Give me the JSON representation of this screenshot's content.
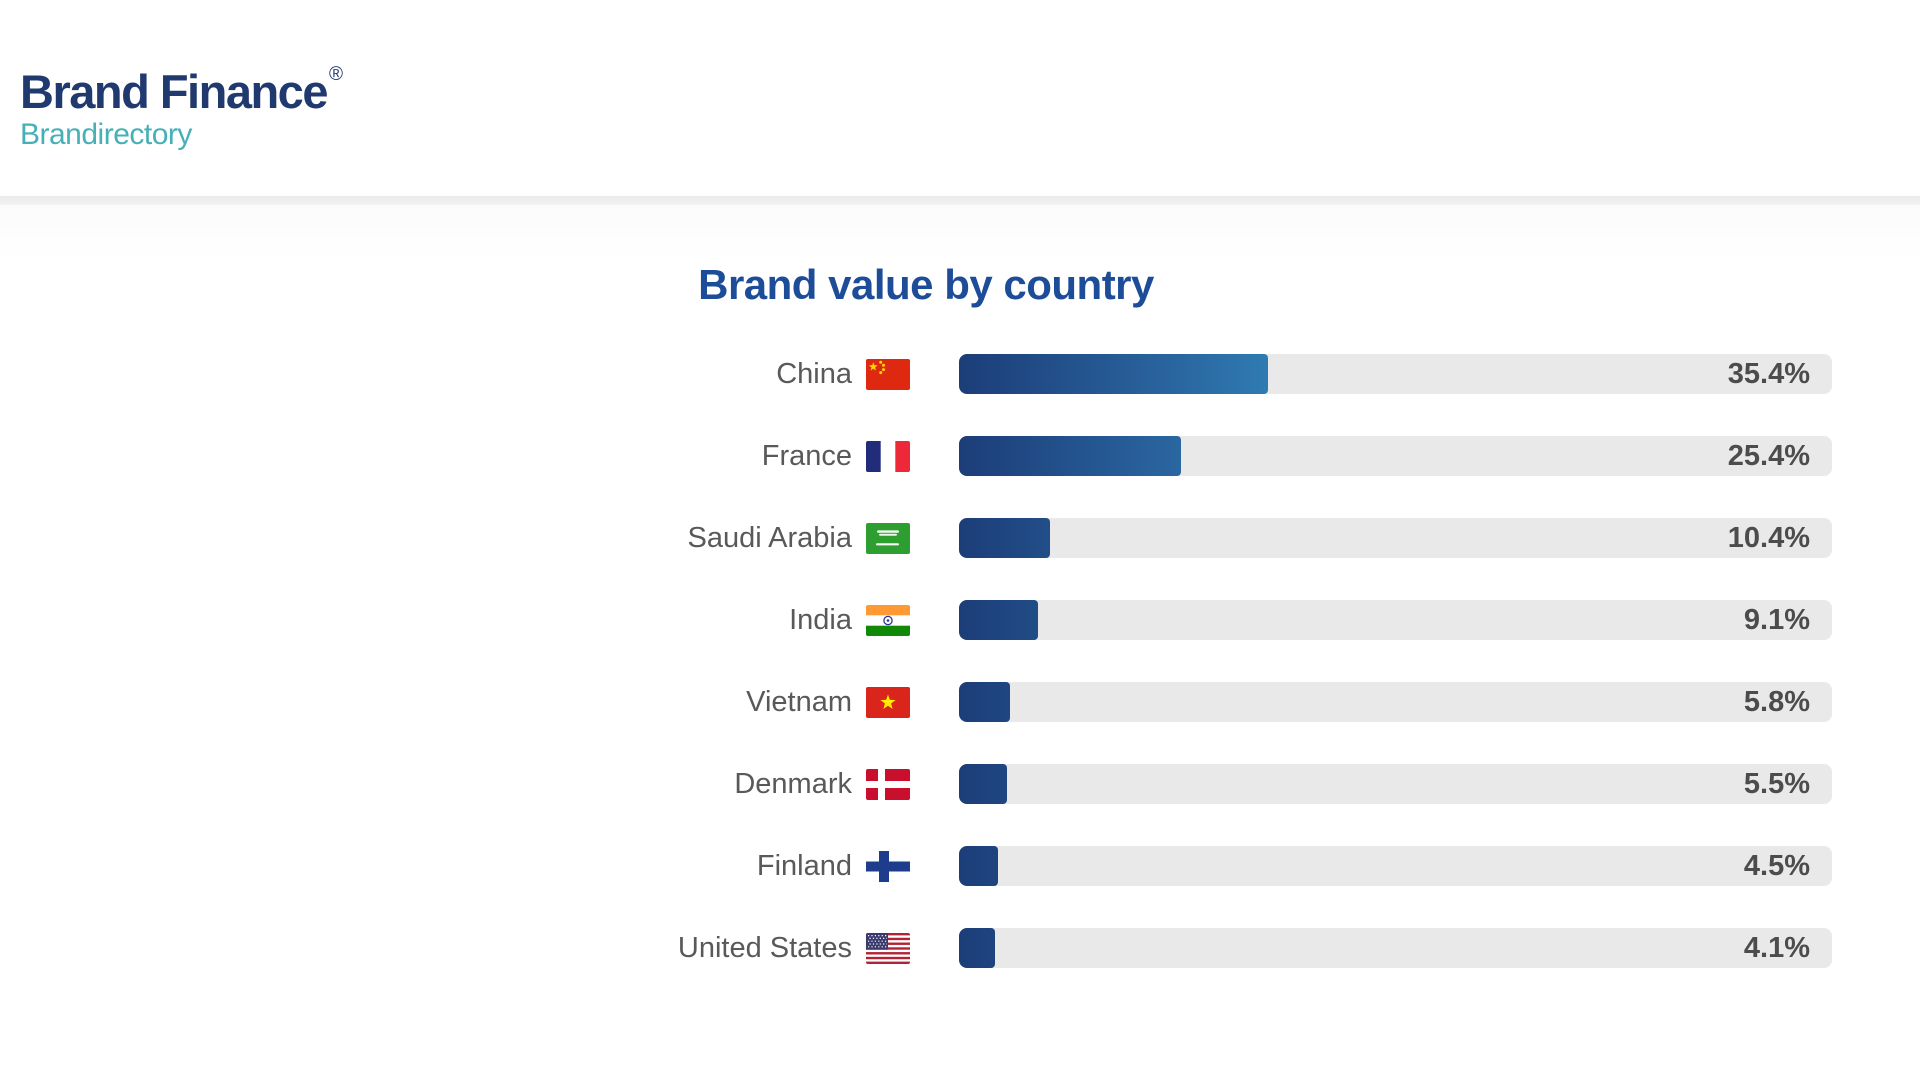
{
  "logo": {
    "brand": "Brand Finance",
    "registered": "®",
    "sub": "Brandirectory"
  },
  "chart_data": {
    "type": "bar",
    "orientation": "horizontal",
    "title": "Brand value by country",
    "categories": [
      "China",
      "France",
      "Saudi Arabia",
      "India",
      "Vietnam",
      "Denmark",
      "Finland",
      "United States"
    ],
    "values": [
      35.4,
      25.4,
      10.4,
      9.1,
      5.8,
      5.5,
      4.5,
      4.1
    ],
    "value_labels": [
      "35.4%",
      "25.4%",
      "10.4%",
      "9.1%",
      "5.8%",
      "5.5%",
      "4.5%",
      "4.1%"
    ],
    "flag_icons": [
      "china-flag-icon",
      "france-flag-icon",
      "saudi-arabia-flag-icon",
      "india-flag-icon",
      "vietnam-flag-icon",
      "denmark-flag-icon",
      "finland-flag-icon",
      "united-states-flag-icon"
    ],
    "flag_codes": [
      "cn",
      "fr",
      "sa",
      "in",
      "vn",
      "dk",
      "fi",
      "us"
    ],
    "xlim": [
      0,
      100
    ],
    "grid": false,
    "legend": false,
    "data_labels": "inside-track-right",
    "bar_color_start": "#1c3d78",
    "bar_color_end": "#2f7cb3",
    "track_color": "#e9e9e9",
    "title_color": "#1d4c99",
    "label_color": "#58595b",
    "value_color": "#4c4c4c"
  },
  "colors": {
    "logo_navy": "#203a70",
    "logo_teal": "#45b1b7",
    "page_background": "#ffffff"
  }
}
